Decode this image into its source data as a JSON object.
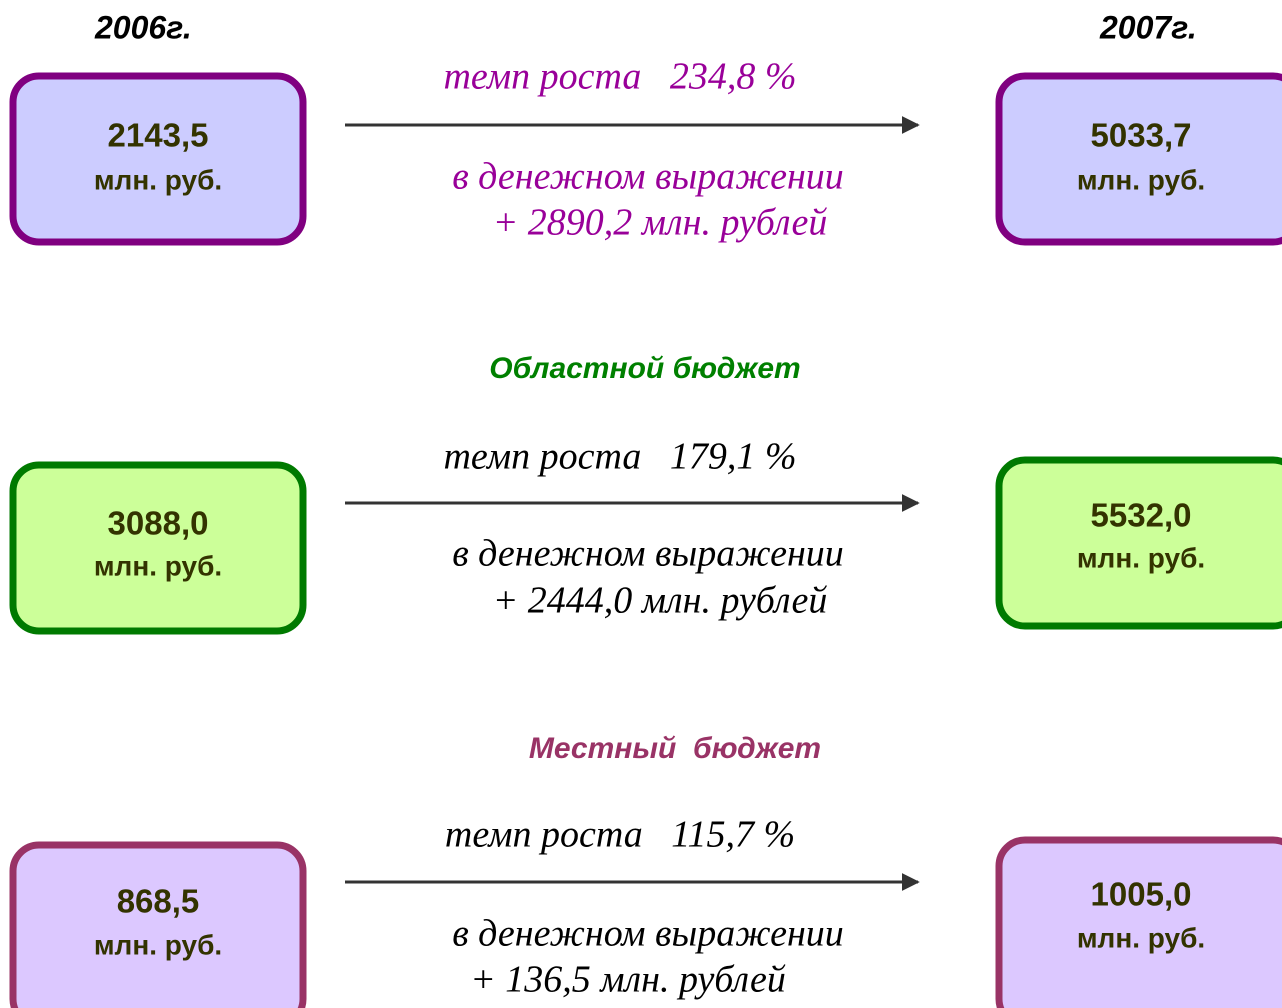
{
  "header": {
    "year_left": "2006г.",
    "year_right": "2007г."
  },
  "rows": [
    {
      "left": {
        "value": "2143,5",
        "unit": "млн. руб."
      },
      "right": {
        "value": "5033,7",
        "unit": "млн. руб."
      },
      "growth": "темп роста   234,8 %",
      "money_label": "в денежном выражении",
      "money_value": "+ 2890,2 млн. рублей"
    },
    {
      "title": "Областной бюджет",
      "left": {
        "value": "3088,0",
        "unit": "млн. руб."
      },
      "right": {
        "value": "5532,0",
        "unit": "млн. руб."
      },
      "growth": "темп роста   179,1 %",
      "money_label": "в денежном выражении",
      "money_value": "+ 2444,0 млн. рублей"
    },
    {
      "title": "Местный  бюджет",
      "left": {
        "value": "868,5",
        "unit": "млн. руб."
      },
      "right": {
        "value": "1005,0",
        "unit": "млн. руб."
      },
      "growth": "темп роста   115,7 %",
      "money_label": "в денежном выражении",
      "money_value": "+ 136,5 млн. рублей"
    }
  ]
}
